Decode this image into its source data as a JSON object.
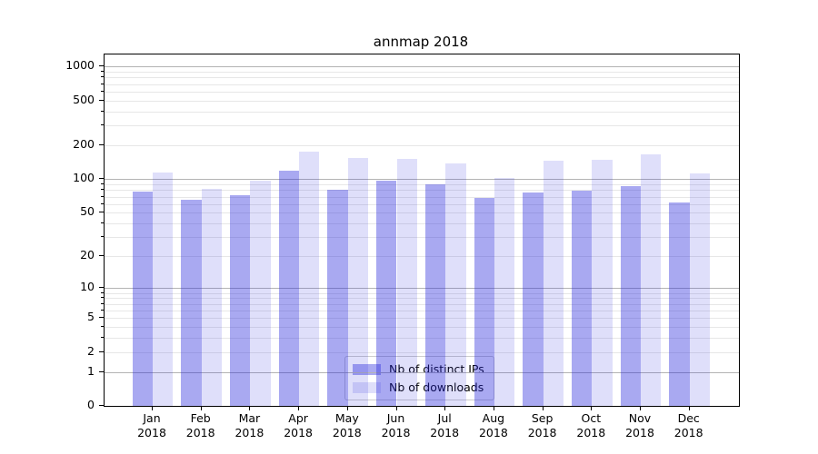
{
  "figure": {
    "background_color": "#ffffff",
    "text_color": "#000000"
  },
  "chart_data": {
    "type": "bar",
    "title": "annmap 2018",
    "xlabel": "",
    "ylabel": "",
    "yscale": "log(value+1)",
    "ylim": [
      0,
      1280
    ],
    "grid": "on (major dark gray at decades, minor light gray)",
    "legend_position": "inside axes, lower center",
    "categories": [
      "Jan",
      "Feb",
      "Mar",
      "Apr",
      "May",
      "Jun",
      "Jul",
      "Aug",
      "Sep",
      "Oct",
      "Nov",
      "Dec"
    ],
    "category_year": "2018",
    "y_tick_labels": [
      "1000",
      "500",
      "200",
      "100",
      "50",
      "20",
      "10",
      "5",
      "2",
      "1",
      "0"
    ],
    "y_tick_values": [
      1000,
      500,
      200,
      100,
      50,
      20,
      10,
      5,
      2,
      1,
      0
    ],
    "y_major_grid_values": [
      1,
      10,
      100,
      1000
    ],
    "series": [
      {
        "name": "Nb of distinct IPs",
        "color": "#2828DC66",
        "values": [
          77,
          65,
          72,
          120,
          80,
          97,
          90,
          68,
          76,
          79,
          87,
          62
        ]
      },
      {
        "name": "Nb of downloads",
        "color": "#2828DC26",
        "values": [
          115,
          82,
          98,
          176,
          155,
          152,
          139,
          102,
          146,
          150,
          168,
          112
        ]
      }
    ],
    "colors": {
      "major_grid": "#b3b3b3",
      "minor_grid": "#e7e7e7",
      "spine": "#000000",
      "bar_ips_rendered": "#a9a9f0",
      "bar_downloads_rendered": "#dcdcf8"
    }
  }
}
